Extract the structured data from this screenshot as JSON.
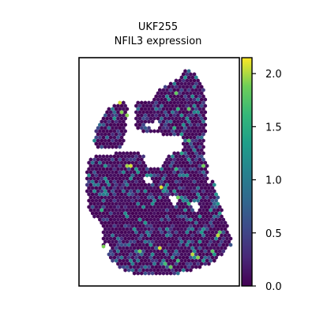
{
  "chart_data": {
    "type": "scatter",
    "title_line1": "UKF255",
    "title_line2": "NFIL3 expression",
    "xlabel": "",
    "ylabel": "",
    "grid": false,
    "legend": "none",
    "colorbar": {
      "colormap": "viridis",
      "range": [
        0.0,
        2.15
      ],
      "ticks": [
        {
          "value": 0.0,
          "label": "0.0"
        },
        {
          "value": 0.5,
          "label": "0.5"
        },
        {
          "value": 1.0,
          "label": "1.0"
        },
        {
          "value": 1.5,
          "label": "1.5"
        },
        {
          "value": 2.0,
          "label": "2.0"
        }
      ],
      "placement": "right"
    },
    "spots": {
      "shape": "hexagon",
      "background_value": 0.1,
      "note_values": "per-spot expression values; most spots near 0, scattered spots 0.5-1.5, few near 2.0"
    }
  }
}
